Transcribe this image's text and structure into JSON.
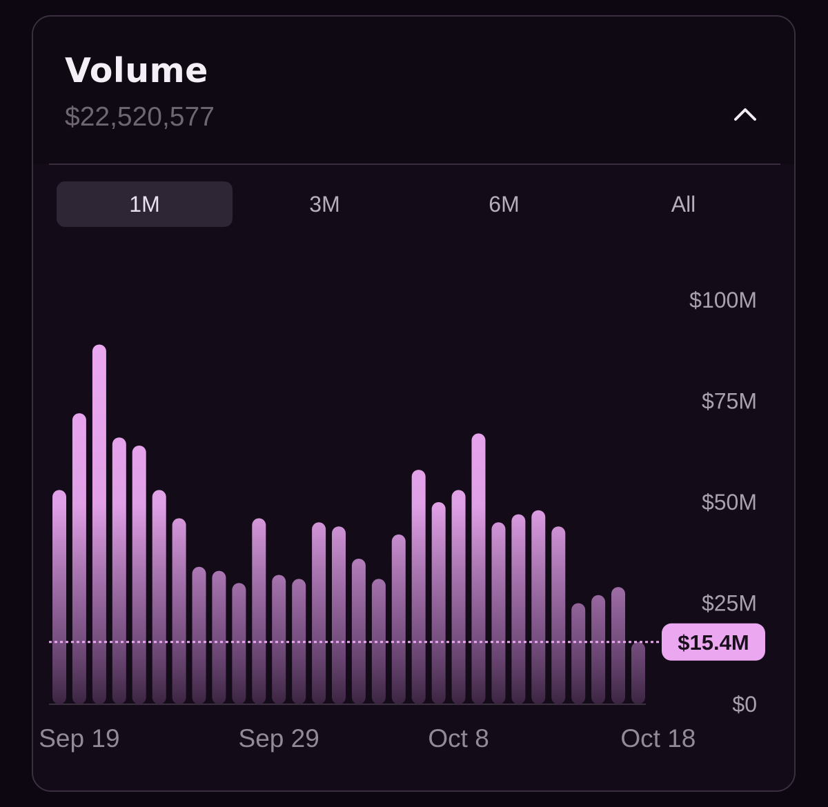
{
  "header": {
    "title": "Volume",
    "total": "$22,520,577",
    "collapse_icon": "chevron-up-icon"
  },
  "tabs": [
    {
      "label": "1M",
      "active": true
    },
    {
      "label": "3M",
      "active": false
    },
    {
      "label": "6M",
      "active": false
    },
    {
      "label": "All",
      "active": false
    }
  ],
  "colors": {
    "accent": "#eba8f1",
    "bar_fade": "#3a2440",
    "background": "#130b17"
  },
  "chart_data": {
    "type": "bar",
    "ylim": [
      0,
      100
    ],
    "y_unit": "$M",
    "y_ticks": [
      {
        "value": 100,
        "label": "$100M"
      },
      {
        "value": 75,
        "label": "$75M"
      },
      {
        "value": 50,
        "label": "$50M"
      },
      {
        "value": 25,
        "label": "$25M"
      },
      {
        "value": 0,
        "label": "$0"
      }
    ],
    "x_tick_labels": [
      {
        "index": 1,
        "label": "Sep 19"
      },
      {
        "index": 11,
        "label": "Sep 29"
      },
      {
        "index": 20,
        "label": "Oct 8"
      },
      {
        "index": 30,
        "label": "Oct 18"
      }
    ],
    "values": [
      53,
      72,
      89,
      66,
      64,
      53,
      46,
      34,
      33,
      30,
      46,
      32,
      31,
      45,
      44,
      36,
      31,
      42,
      58,
      50,
      53,
      67,
      45,
      47,
      48,
      44,
      25,
      27,
      29,
      15.4
    ],
    "current": {
      "value": 15.4,
      "label": "$15.4M"
    },
    "grid": false
  }
}
